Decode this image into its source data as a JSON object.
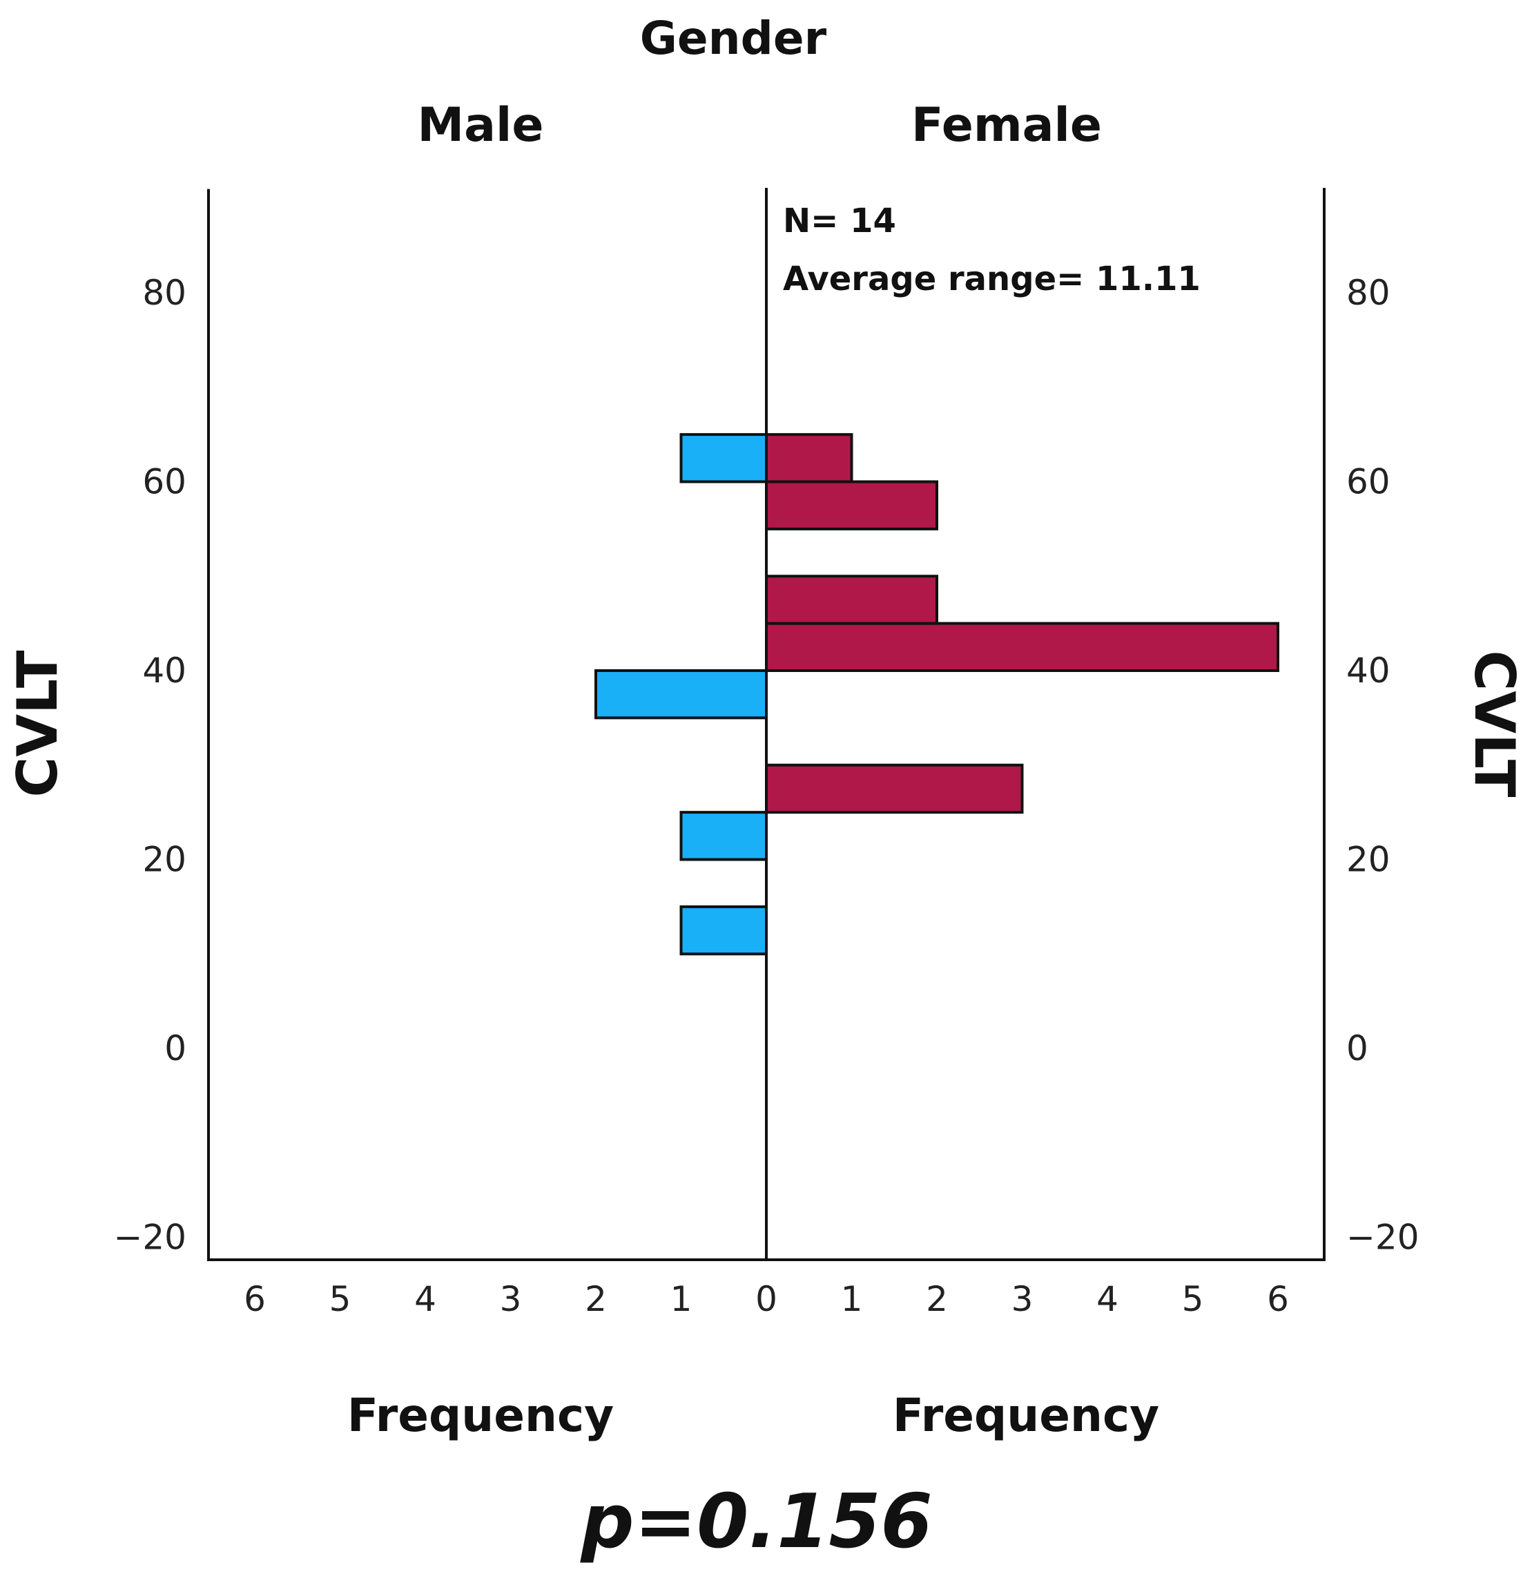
{
  "chart_data": {
    "type": "population-pyramid-histogram",
    "title": "Gender",
    "panels": [
      {
        "name": "Male",
        "xlabel": "Frequency",
        "direction": "left"
      },
      {
        "name": "Female",
        "xlabel": "Frequency",
        "direction": "right"
      }
    ],
    "ylabel_left": "CVLT",
    "ylabel_right": "CVLT",
    "ylim": [
      -25,
      91
    ],
    "yticks": [
      -20,
      0,
      20,
      40,
      60,
      80
    ],
    "ytick_labels": [
      "−20",
      "0",
      "20",
      "40",
      "60",
      "80"
    ],
    "xlim": [
      0,
      6.5
    ],
    "xticks_male": [
      6,
      5,
      4,
      3,
      2,
      1,
      0
    ],
    "xticks_female": [
      0,
      1,
      2,
      3,
      4,
      5,
      6
    ],
    "bin_width": 5,
    "series": [
      {
        "name": "Male",
        "color": "#1ab0f8",
        "bins": [
          {
            "from": 10,
            "to": 15,
            "count": 1
          },
          {
            "from": 20,
            "to": 25,
            "count": 1
          },
          {
            "from": 35,
            "to": 40,
            "count": 2
          },
          {
            "from": 60,
            "to": 65,
            "count": 1
          }
        ]
      },
      {
        "name": "Female",
        "color": "#b0184a",
        "bins": [
          {
            "from": 25,
            "to": 30,
            "count": 3
          },
          {
            "from": 40,
            "to": 45,
            "count": 6
          },
          {
            "from": 45,
            "to": 50,
            "count": 2
          },
          {
            "from": 55,
            "to": 60,
            "count": 2
          },
          {
            "from": 60,
            "to": 65,
            "count": 1
          }
        ]
      }
    ],
    "annotations": {
      "n": "N= 14",
      "average_range": "Average range= 11.11"
    },
    "p_value": "p=0.156"
  }
}
